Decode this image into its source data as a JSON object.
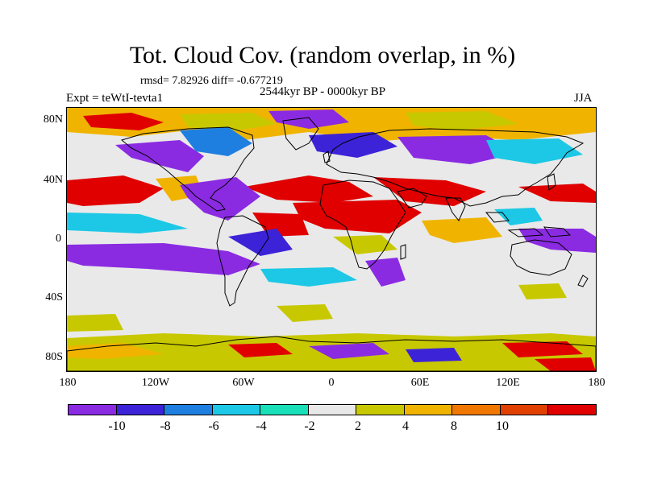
{
  "title": "Tot. Cloud Cov. (random overlap, in %)",
  "stats": "rmsd= 7.82926 diff= -0.677219",
  "period": "2544kyr BP - 0000kyr BP",
  "experiment": "Expt = teWtI-tevta1",
  "season": "JJA",
  "y_axis_labels": [
    "80N",
    "40N",
    "0",
    "40S",
    "80S"
  ],
  "x_axis_labels": [
    "180",
    "120W",
    "60W",
    "0",
    "60E",
    "120E",
    "180"
  ],
  "colorbar": {
    "labels": [
      "-10",
      "-8",
      "-6",
      "-4",
      "-2",
      "2",
      "4",
      "8",
      "10"
    ],
    "colors": [
      "#8a2be2",
      "#3c23d8",
      "#1f7fe0",
      "#1cc8e6",
      "#19e0b8",
      "#e8e8e8",
      "#c8c800",
      "#f0b400",
      "#f07800",
      "#e04000",
      "#e00000"
    ]
  },
  "map_colors": {
    "neutral": "#e9e9e9",
    "purple": "#8a2be2",
    "blue": "#3c23d8",
    "midblue": "#1f7fe0",
    "cyan": "#1cc8e6",
    "teal": "#19e0b8",
    "yellow": "#c8c800",
    "orange": "#f0b400",
    "darkorange": "#f07800",
    "red": "#e00000",
    "coast": "#000000"
  }
}
